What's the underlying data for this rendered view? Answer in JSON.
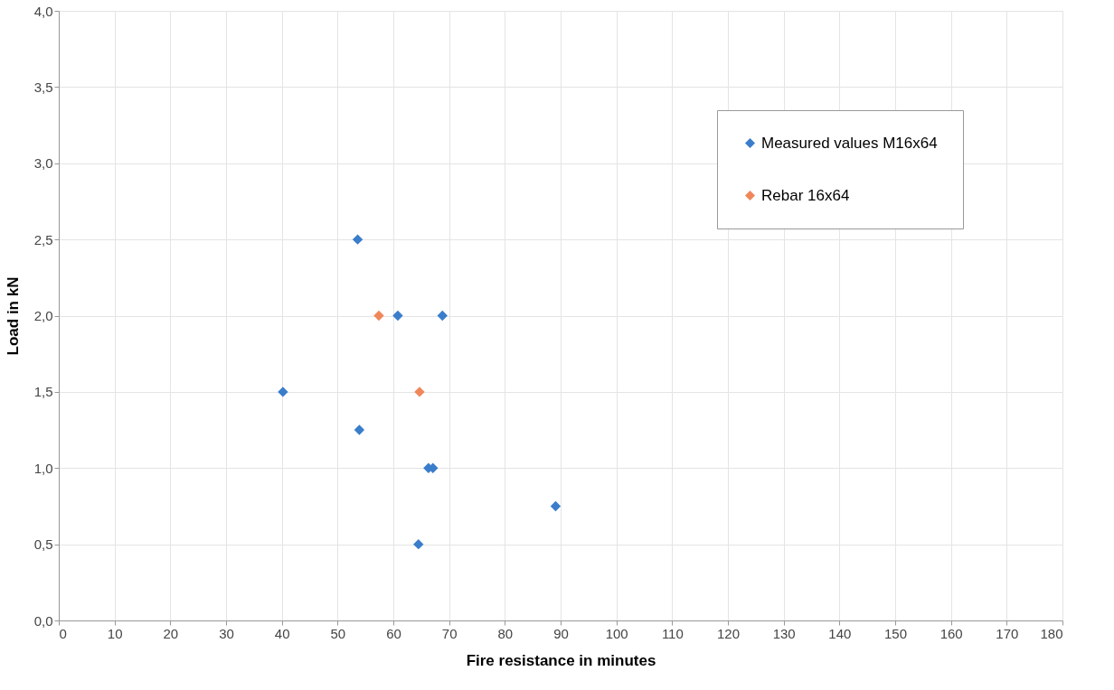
{
  "chart_data": {
    "type": "scatter",
    "xlabel": "Fire resistance in minutes",
    "ylabel": "Load in kN",
    "series": [
      {
        "name": "Measured values M16x64",
        "color": "#3a7dcb",
        "x": [
          53.6,
          60.8,
          68.8,
          40.2,
          53.9,
          66.3,
          67.1,
          89.1,
          64.5
        ],
        "values": [
          2.5,
          2.0,
          2.0,
          1.5,
          1.25,
          1.0,
          1.0,
          0.75,
          0.5
        ]
      },
      {
        "name": "Rebar 16x64",
        "color": "#f0875a",
        "x": [
          57.4,
          64.7
        ],
        "values": [
          2.0,
          1.5
        ]
      }
    ],
    "xlim": [
      0,
      180
    ],
    "xticks": [
      0,
      10,
      20,
      30,
      40,
      50,
      60,
      70,
      80,
      90,
      100,
      110,
      120,
      130,
      140,
      150,
      160,
      170,
      180
    ],
    "ylim": [
      0,
      4
    ],
    "yticks": [
      {
        "value": 0,
        "label": "0,0"
      },
      {
        "value": 0.5,
        "label": "0,5"
      },
      {
        "value": 1,
        "label": "1,0"
      },
      {
        "value": 1.5,
        "label": "1,5"
      },
      {
        "value": 2,
        "label": "2,0"
      },
      {
        "value": 2.5,
        "label": "2,5"
      },
      {
        "value": 3,
        "label": "3,0"
      },
      {
        "value": 3.5,
        "label": "3,5"
      },
      {
        "value": 4,
        "label": "4,0"
      }
    ],
    "grid": true,
    "legend": "top right",
    "marker": "diamond"
  }
}
